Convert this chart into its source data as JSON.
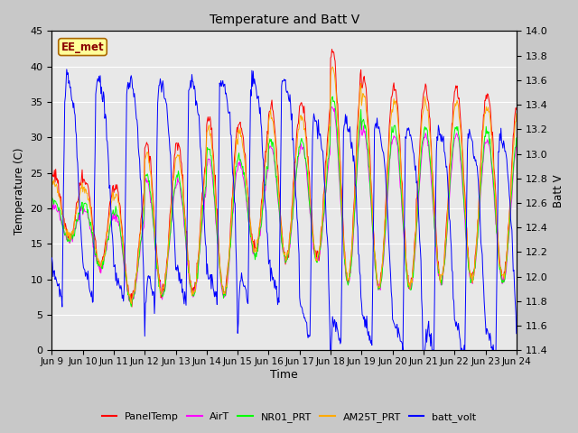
{
  "title": "Temperature and Batt V",
  "xlabel": "Time",
  "ylabel_left": "Temperature (C)",
  "ylabel_right": "Batt V",
  "annotation": "EE_met",
  "ylim_left": [
    0,
    45
  ],
  "ylim_right": [
    11.4,
    14.0
  ],
  "yticks_left": [
    0,
    5,
    10,
    15,
    20,
    25,
    30,
    35,
    40,
    45
  ],
  "yticks_right": [
    11.4,
    11.6,
    11.8,
    12.0,
    12.2,
    12.4,
    12.6,
    12.8,
    13.0,
    13.2,
    13.4,
    13.6,
    13.8,
    14.0
  ],
  "series_colors": {
    "PanelTemp": "#ff0000",
    "AirT": "#ff00ff",
    "NR01_PRT": "#00ff00",
    "AM25T_PRT": "#ffaa00",
    "batt_volt": "#0000ff"
  },
  "fig_bg_color": "#c8c8c8",
  "plot_bg_color": "#e8e8e8",
  "grid_color": "#ffffff",
  "annotation_bg": "#ffff99",
  "annotation_border": "#aa6600"
}
